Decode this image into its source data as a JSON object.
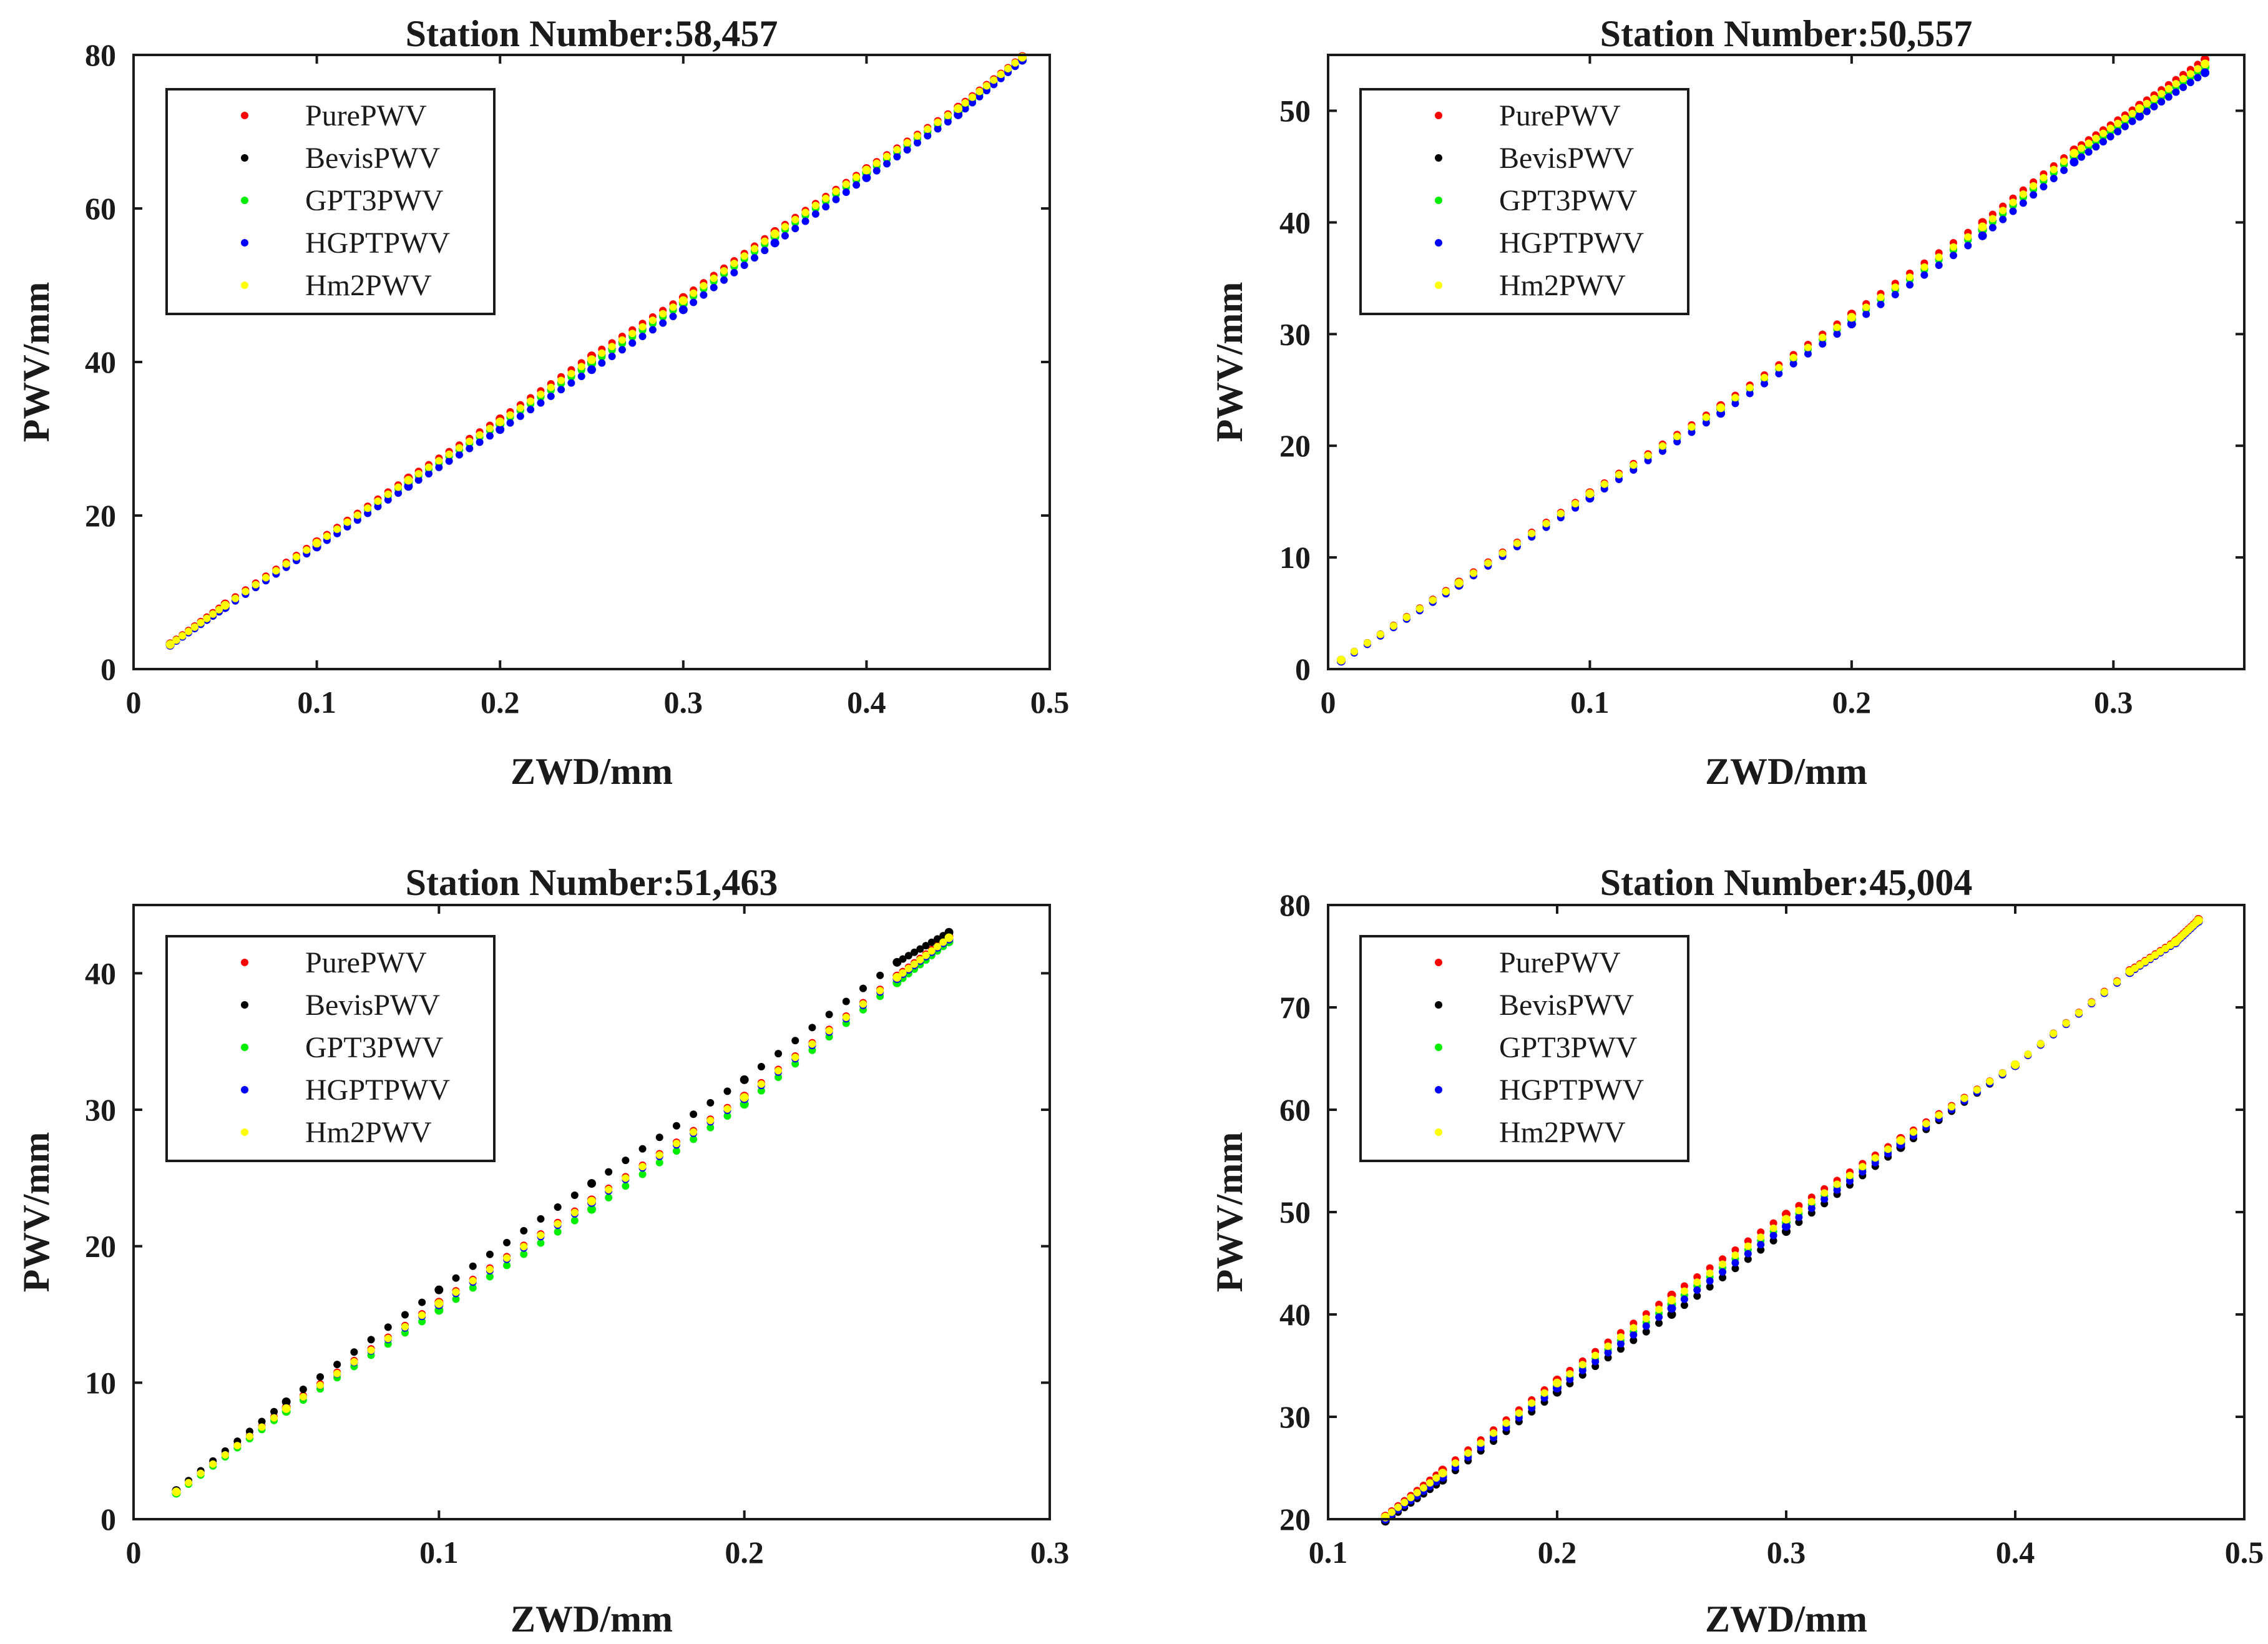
{
  "figure": {
    "layout": "2x2 grid",
    "series_colors": {
      "PurePWV": "#ff0000",
      "BevisPWV": "#000000",
      "GPT3PWV": "#00ee00",
      "HGPTPWV": "#0000ff",
      "Hm2PWV": "#ffff00"
    }
  },
  "chart_data": [
    {
      "type": "scatter",
      "title": "Station Number:58,457",
      "xlabel": "ZWD/mm",
      "ylabel": "PWV/mm",
      "xlim": [
        0,
        0.5
      ],
      "ylim": [
        0,
        80
      ],
      "xticks": [
        0,
        0.1,
        0.2,
        0.3,
        0.4,
        0.5
      ],
      "xtick_labels": [
        "0",
        "0.1",
        "0.2",
        "0.3",
        "0.4",
        "0.5"
      ],
      "yticks": [
        0,
        20,
        40,
        60,
        80
      ],
      "ytick_labels": [
        "0",
        "20",
        "40",
        "60",
        "80"
      ],
      "legend_position": "top-left",
      "series": [
        {
          "name": "PurePWV",
          "color": "#ff0000",
          "x": [
            0.02,
            0.05,
            0.1,
            0.15,
            0.2,
            0.25,
            0.3,
            0.35,
            0.4,
            0.45,
            0.485
          ],
          "y": [
            3.3,
            8.5,
            16.6,
            24.9,
            32.6,
            40.8,
            48.4,
            57.0,
            65.2,
            73.2,
            79.8
          ]
        },
        {
          "name": "BevisPWV",
          "color": "#000000",
          "x": [
            0.02,
            0.05,
            0.1,
            0.15,
            0.2,
            0.25,
            0.3,
            0.35,
            0.4,
            0.45,
            0.485
          ],
          "y": [
            3.2,
            8.2,
            16.3,
            24.5,
            32.0,
            40.0,
            47.8,
            56.5,
            64.8,
            72.8,
            79.6
          ]
        },
        {
          "name": "GPT3PWV",
          "color": "#00ee00",
          "x": [
            0.02,
            0.05,
            0.1,
            0.15,
            0.2,
            0.25,
            0.3,
            0.35,
            0.4,
            0.45,
            0.485
          ],
          "y": [
            3.2,
            8.3,
            16.3,
            24.3,
            31.9,
            39.8,
            47.6,
            56.3,
            64.6,
            72.6,
            79.5
          ]
        },
        {
          "name": "HGPTPWV",
          "color": "#0000ff",
          "x": [
            0.02,
            0.05,
            0.1,
            0.15,
            0.2,
            0.25,
            0.3,
            0.35,
            0.4,
            0.45,
            0.485
          ],
          "y": [
            3.1,
            8.0,
            15.9,
            23.8,
            31.2,
            39.0,
            46.8,
            55.5,
            64.0,
            72.2,
            79.3
          ]
        },
        {
          "name": "Hm2PWV",
          "color": "#ffff00",
          "x": [
            0.02,
            0.05,
            0.1,
            0.15,
            0.2,
            0.25,
            0.3,
            0.35,
            0.4,
            0.45,
            0.485
          ],
          "y": [
            3.2,
            8.3,
            16.4,
            24.6,
            32.2,
            40.3,
            48.0,
            56.7,
            65.0,
            73.0,
            79.7
          ]
        }
      ]
    },
    {
      "type": "scatter",
      "title": "Station Number:50,557",
      "xlabel": "ZWD/mm",
      "ylabel": "PWV/mm",
      "xlim": [
        0,
        0.35
      ],
      "ylim": [
        0,
        55
      ],
      "xticks": [
        0,
        0.1,
        0.2,
        0.3
      ],
      "xtick_labels": [
        "0",
        "0.1",
        "0.2",
        "0.3"
      ],
      "yticks": [
        0,
        10,
        20,
        30,
        40,
        50
      ],
      "ytick_labels": [
        "0",
        "10",
        "20",
        "30",
        "40",
        "50"
      ],
      "legend_position": "top-left",
      "series": [
        {
          "name": "PurePWV",
          "color": "#ff0000",
          "x": [
            0.005,
            0.05,
            0.1,
            0.15,
            0.2,
            0.25,
            0.285,
            0.31,
            0.335
          ],
          "y": [
            0.8,
            7.8,
            15.8,
            23.6,
            31.8,
            40.0,
            46.5,
            50.5,
            54.6
          ]
        },
        {
          "name": "BevisPWV",
          "color": "#000000",
          "x": [
            0.005,
            0.05,
            0.1,
            0.15,
            0.2,
            0.25,
            0.285,
            0.31,
            0.335
          ],
          "y": [
            0.8,
            7.7,
            15.6,
            23.3,
            31.4,
            39.4,
            46.0,
            50.0,
            54.0
          ]
        },
        {
          "name": "GPT3PWV",
          "color": "#00ee00",
          "x": [
            0.005,
            0.05,
            0.1,
            0.15,
            0.2,
            0.25,
            0.285,
            0.31,
            0.335
          ],
          "y": [
            0.8,
            7.7,
            15.6,
            23.3,
            31.3,
            39.3,
            45.9,
            49.9,
            53.9
          ]
        },
        {
          "name": "HGPTPWV",
          "color": "#0000ff",
          "x": [
            0.005,
            0.05,
            0.1,
            0.15,
            0.2,
            0.25,
            0.285,
            0.31,
            0.335
          ],
          "y": [
            0.7,
            7.5,
            15.3,
            22.9,
            30.9,
            38.8,
            45.4,
            49.5,
            53.4
          ]
        },
        {
          "name": "Hm2PWV",
          "color": "#ffff00",
          "x": [
            0.005,
            0.05,
            0.1,
            0.15,
            0.2,
            0.25,
            0.285,
            0.31,
            0.335
          ],
          "y": [
            0.8,
            7.7,
            15.7,
            23.4,
            31.5,
            39.6,
            46.2,
            50.2,
            54.2
          ]
        }
      ]
    },
    {
      "type": "scatter",
      "title": "Station Number:51,463",
      "xlabel": "ZWD/mm",
      "ylabel": "PWV/mm",
      "xlim": [
        0,
        0.3
      ],
      "ylim": [
        0,
        45
      ],
      "xticks": [
        0,
        0.1,
        0.2,
        0.3
      ],
      "xtick_labels": [
        "0",
        "0.1",
        "0.2",
        "0.3"
      ],
      "yticks": [
        0,
        10,
        20,
        30,
        40
      ],
      "ytick_labels": [
        "0",
        "10",
        "20",
        "30",
        "40"
      ],
      "legend_position": "top-left",
      "series": [
        {
          "name": "PurePWV",
          "color": "#ff0000",
          "x": [
            0.014,
            0.05,
            0.1,
            0.15,
            0.2,
            0.25,
            0.267
          ],
          "y": [
            2.0,
            8.2,
            15.9,
            23.4,
            31.0,
            39.8,
            42.7
          ]
        },
        {
          "name": "BevisPWV",
          "color": "#000000",
          "x": [
            0.014,
            0.05,
            0.1,
            0.15,
            0.2,
            0.25,
            0.267
          ],
          "y": [
            2.1,
            8.6,
            16.8,
            24.6,
            32.2,
            40.8,
            43.0
          ]
        },
        {
          "name": "GPT3PWV",
          "color": "#00ee00",
          "x": [
            0.014,
            0.05,
            0.1,
            0.15,
            0.2,
            0.25,
            0.267
          ],
          "y": [
            1.9,
            7.9,
            15.3,
            22.7,
            30.4,
            39.3,
            42.3
          ]
        },
        {
          "name": "HGPTPWV",
          "color": "#0000ff",
          "x": [
            0.014,
            0.05,
            0.1,
            0.15,
            0.2,
            0.25,
            0.267
          ],
          "y": [
            2.0,
            8.1,
            15.7,
            23.2,
            30.8,
            39.6,
            42.5
          ]
        },
        {
          "name": "Hm2PWV",
          "color": "#ffff00",
          "x": [
            0.014,
            0.05,
            0.1,
            0.15,
            0.2,
            0.25,
            0.267
          ],
          "y": [
            2.0,
            8.1,
            15.8,
            23.3,
            30.9,
            39.7,
            42.6
          ]
        }
      ]
    },
    {
      "type": "scatter",
      "title": "Station Number:45,004",
      "xlabel": "ZWD/mm",
      "ylabel": "PWV/mm",
      "xlim": [
        0.1,
        0.5
      ],
      "ylim": [
        20,
        80
      ],
      "xticks": [
        0.1,
        0.2,
        0.3,
        0.4,
        0.5
      ],
      "xtick_labels": [
        "0.1",
        "0.2",
        "0.3",
        "0.4",
        "0.5"
      ],
      "yticks": [
        20,
        30,
        40,
        50,
        60,
        70,
        80
      ],
      "ytick_labels": [
        "20",
        "30",
        "40",
        "50",
        "60",
        "70",
        "80"
      ],
      "legend_position": "top-left",
      "series": [
        {
          "name": "PurePWV",
          "color": "#ff0000",
          "x": [
            0.125,
            0.15,
            0.2,
            0.25,
            0.3,
            0.35,
            0.4,
            0.45,
            0.47,
            0.48
          ],
          "y": [
            20.3,
            24.8,
            33.6,
            41.9,
            49.8,
            57.2,
            64.4,
            73.6,
            76.5,
            78.6
          ]
        },
        {
          "name": "BevisPWV",
          "color": "#000000",
          "x": [
            0.125,
            0.15,
            0.2,
            0.25,
            0.3,
            0.35,
            0.4,
            0.45,
            0.47,
            0.48
          ],
          "y": [
            19.8,
            23.8,
            32.4,
            40.0,
            48.1,
            56.3,
            64.3,
            73.4,
            76.3,
            78.4
          ]
        },
        {
          "name": "GPT3PWV",
          "color": "#00ee00",
          "x": [
            0.125,
            0.15,
            0.2,
            0.25,
            0.3,
            0.35,
            0.4,
            0.45,
            0.47,
            0.48
          ],
          "y": [
            20.1,
            24.3,
            33.0,
            41.0,
            49.0,
            56.8,
            64.4,
            73.5,
            76.4,
            78.5
          ]
        },
        {
          "name": "HGPTPWV",
          "color": "#0000ff",
          "x": [
            0.125,
            0.15,
            0.2,
            0.25,
            0.3,
            0.35,
            0.4,
            0.45,
            0.47,
            0.48
          ],
          "y": [
            20.0,
            24.1,
            32.8,
            40.6,
            48.6,
            56.6,
            64.3,
            73.4,
            76.3,
            78.4
          ]
        },
        {
          "name": "Hm2PWV",
          "color": "#ffff00",
          "x": [
            0.125,
            0.15,
            0.2,
            0.25,
            0.3,
            0.35,
            0.4,
            0.45,
            0.47,
            0.48
          ],
          "y": [
            20.2,
            24.5,
            33.3,
            41.4,
            49.3,
            57.0,
            64.4,
            73.5,
            76.4,
            78.5
          ]
        }
      ]
    }
  ]
}
